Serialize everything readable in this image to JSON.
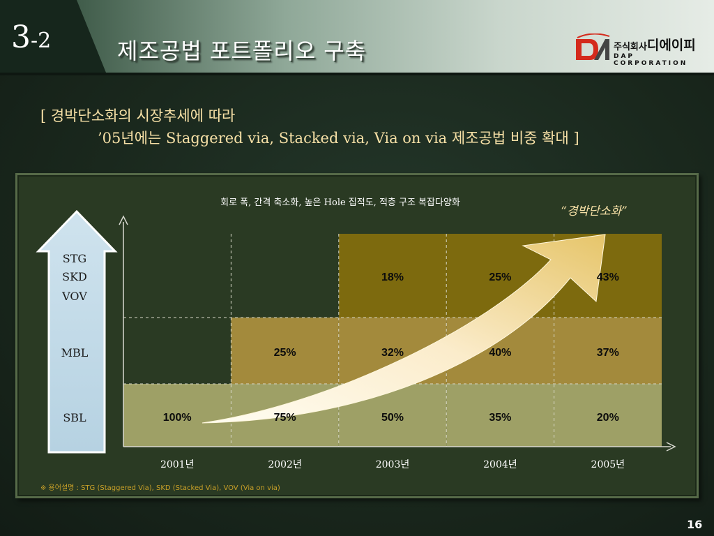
{
  "header": {
    "section_major": "3",
    "section_minor": "-2",
    "title": "제조공법 포트폴리오 구축"
  },
  "logo": {
    "kr_prefix": "주식회사",
    "kr_name": "디에이피",
    "en_name": "DAP CORPORATION"
  },
  "subtitle": {
    "line1": "[ 경박단소화의 시장추세에 따라",
    "line2": "’05년에는 Staggered via, Stacked via, Via on via 제조공법 비중 확대 ]"
  },
  "chart_data": {
    "type": "table",
    "caption": "회로 폭, 간격 축소화, 높은 Hole 집적도, 적층 구조 복잡다양화",
    "trend_label": "“경박단소화”",
    "arrow_labels": [
      "STG",
      "SKD",
      "VOV",
      "MBL",
      "SBL"
    ],
    "categories": [
      "2001년",
      "2002년",
      "2003년",
      "2004년",
      "2005년"
    ],
    "series": [
      {
        "name": "STG SKD VOV",
        "values": [
          null,
          null,
          18,
          25,
          43
        ],
        "labels": [
          "",
          "",
          "18%",
          "25%",
          "43%"
        ]
      },
      {
        "name": "MBL",
        "values": [
          null,
          25,
          32,
          40,
          37
        ],
        "labels": [
          "",
          "25%",
          "32%",
          "40%",
          "37%"
        ]
      },
      {
        "name": "SBL",
        "values": [
          100,
          75,
          50,
          35,
          20
        ],
        "labels": [
          "100%",
          "75%",
          "50%",
          "35%",
          "20%"
        ]
      }
    ],
    "colors": {
      "top": "#7d6a0e",
      "middle": "#a38a3c",
      "bottom": "#9ea066",
      "panel": "#2a3a23",
      "arrow_fill": "#f6e6b8"
    }
  },
  "footnote": "※ 용어설명 : STG (Staggered Via), SKD (Stacked Via), VOV (Via on via)",
  "page_number": "16"
}
